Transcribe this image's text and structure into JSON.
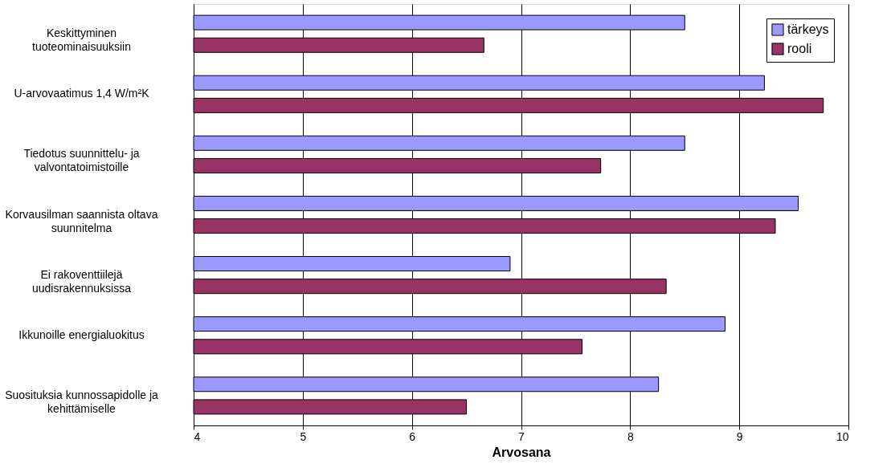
{
  "chart_data": {
    "type": "bar",
    "orientation": "horizontal",
    "xlabel": "Arvosana",
    "categories": [
      "Keskittyminen\ntuoteominaisuuksiin",
      "U-arvovaatimus 1,4 W/m²K",
      "Tiedotus suunnittelu- ja\nvalvontatoimistoille",
      "Korvausilman saannista oltava\nsuunnitelma",
      "Ei rakoventtiilejä\nuudisrakennuksissa",
      "Ikkunoille energialuokitus",
      "Suosituksia kunnossapidolle ja\nkehittämiselle"
    ],
    "series": [
      {
        "name": "tärkeys",
        "color": "#9999ff",
        "values": [
          8.5,
          9.23,
          8.5,
          9.54,
          6.9,
          8.87,
          8.26
        ]
      },
      {
        "name": "rooli",
        "color": "#993366",
        "values": [
          6.66,
          9.77,
          7.73,
          9.33,
          8.33,
          7.56,
          6.5
        ]
      }
    ],
    "xlim": [
      4,
      10
    ],
    "xticks": [
      4,
      5,
      6,
      7,
      8,
      9,
      10
    ],
    "grid": "x",
    "legend": "top right"
  }
}
